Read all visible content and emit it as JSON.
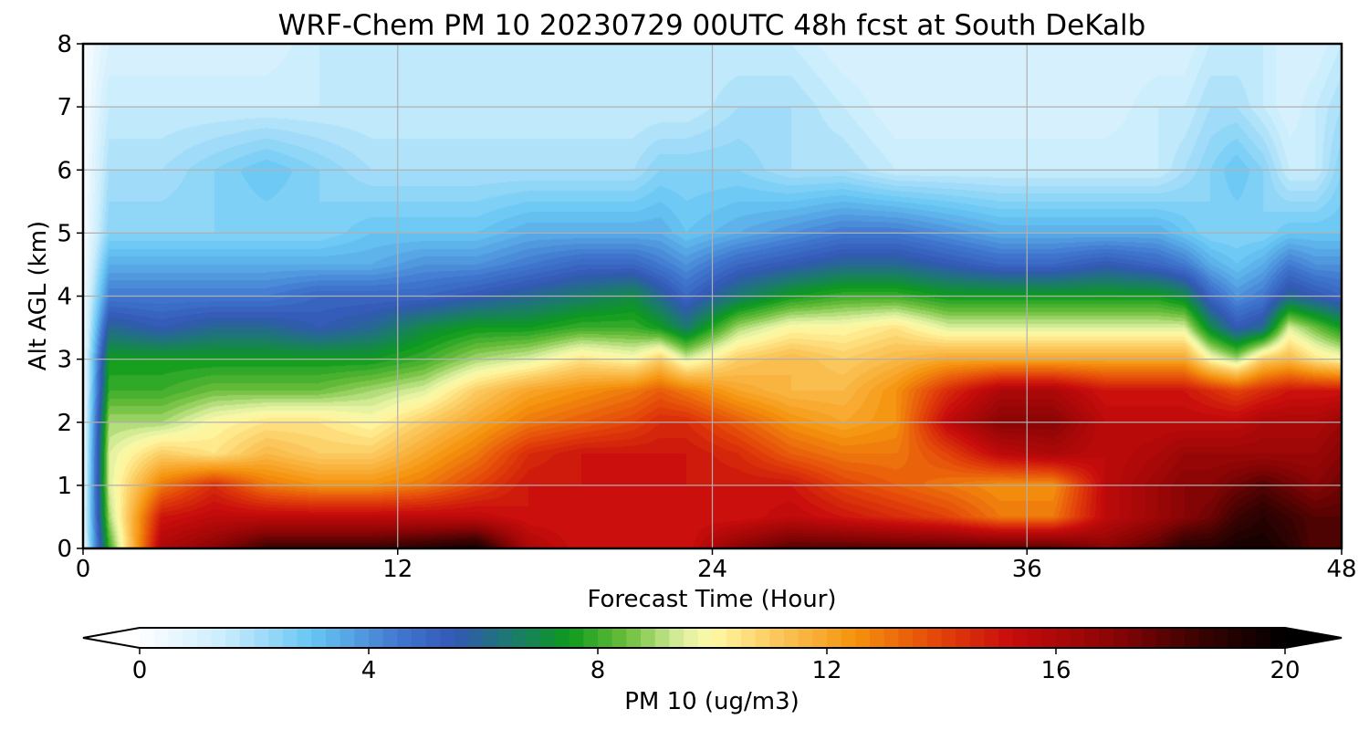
{
  "chart_data": {
    "type": "heatmap",
    "title": "WRF-Chem PM 10  20230729 00UTC 48h fcst at South DeKalb",
    "xlabel": "Forecast Time (Hour)",
    "ylabel": "Alt AGL (km)",
    "xlim": [
      0,
      48
    ],
    "ylim": [
      0,
      8
    ],
    "xticks": [
      0,
      12,
      24,
      36,
      48
    ],
    "yticks": [
      0,
      1,
      2,
      3,
      4,
      5,
      6,
      7,
      8
    ],
    "grid": true,
    "z_unit": "ug/m3",
    "x": [
      0,
      1,
      3,
      5,
      7,
      9,
      11,
      13,
      15,
      17,
      19,
      21,
      22,
      23,
      25,
      27,
      29,
      31,
      33,
      35,
      37,
      39,
      41,
      42,
      43,
      44,
      45,
      46,
      47,
      48
    ],
    "y": [
      0,
      0.5,
      1,
      1.5,
      2,
      2.5,
      3,
      3.5,
      4,
      4.5,
      5,
      6,
      7,
      8
    ],
    "z": [
      [
        0.5,
        8,
        16,
        17,
        18.5,
        18.5,
        18.5,
        19,
        19.5,
        16,
        15,
        15,
        15,
        15,
        17,
        18,
        18,
        18,
        18,
        18,
        18,
        17,
        18,
        19,
        19,
        19.5,
        19.5,
        19,
        18,
        18
      ],
      [
        0.5,
        9,
        15,
        15.5,
        15.5,
        15.5,
        15.5,
        15.5,
        15.5,
        15,
        15,
        15,
        15,
        15,
        15,
        15.5,
        15,
        14.5,
        14,
        13,
        13,
        15.5,
        16.5,
        17,
        17.5,
        18.5,
        19,
        18.5,
        18,
        18
      ],
      [
        0.3,
        9.5,
        13,
        14.5,
        13,
        12.5,
        12.5,
        13,
        14,
        15,
        15,
        15,
        15,
        15,
        15,
        15,
        14,
        13.5,
        13,
        12.5,
        12.5,
        15.5,
        16.5,
        17,
        17,
        17.5,
        18,
        17.5,
        17,
        17.5
      ],
      [
        0.2,
        9.5,
        11,
        10.5,
        11.5,
        11,
        11,
        12,
        13,
        14.5,
        15,
        15,
        15,
        15,
        14.5,
        13.5,
        13,
        13,
        14,
        15.5,
        16,
        15.5,
        16,
        16.5,
        16.5,
        16.5,
        16.5,
        16.5,
        16.5,
        17
      ],
      [
        0.2,
        9,
        9,
        10,
        10.5,
        10.5,
        10,
        11,
        12,
        13,
        13.5,
        14,
        14.5,
        14.5,
        13.5,
        12.5,
        12,
        12.5,
        15.5,
        17,
        17,
        15.5,
        15.5,
        15.5,
        15.5,
        15.5,
        16,
        16,
        16,
        16.5
      ],
      [
        0.2,
        8,
        8,
        8.5,
        8.5,
        8.5,
        9,
        9.5,
        11,
        12,
        12.5,
        13,
        13.5,
        13,
        12,
        11.5,
        11.5,
        12.5,
        14.5,
        16,
        16,
        15,
        15,
        15,
        14.5,
        14,
        14.5,
        15,
        15,
        15
      ],
      [
        0.2,
        7.5,
        7.5,
        7.5,
        7.5,
        7.5,
        7.5,
        8,
        9,
        9.5,
        10.5,
        10,
        11,
        9.5,
        11,
        11.5,
        11,
        11.5,
        12,
        12,
        12,
        12,
        12,
        12,
        10,
        9,
        11,
        11.5,
        10.5,
        10
      ],
      [
        0.2,
        6,
        5.5,
        6,
        6,
        5.5,
        6,
        7,
        7.5,
        7.5,
        8,
        8,
        7.5,
        6.5,
        9,
        10,
        10,
        10.5,
        9.5,
        9.5,
        9.5,
        9.5,
        9.5,
        9.5,
        7,
        5.5,
        6,
        9.5,
        8.5,
        7.5
      ],
      [
        0.2,
        4.5,
        4.5,
        4.5,
        4.5,
        5,
        5,
        5,
        5.5,
        6,
        6.5,
        7,
        6,
        5,
        6.5,
        7.5,
        8,
        8,
        7.5,
        7.5,
        7.5,
        7.5,
        7.5,
        7,
        5,
        4,
        4.5,
        6,
        5.5,
        5
      ],
      [
        0.1,
        3.5,
        3.5,
        3.5,
        3.5,
        3.5,
        3.5,
        4,
        4,
        4.5,
        5,
        5,
        4.5,
        4,
        5,
        5.5,
        6,
        6,
        5.5,
        5,
        5,
        5.5,
        5,
        4.5,
        3.5,
        3,
        3.5,
        4.5,
        4,
        4
      ],
      [
        0.1,
        2.5,
        2.5,
        2.5,
        2.5,
        2.5,
        3,
        3,
        3,
        3.5,
        3.5,
        3.5,
        3.5,
        3,
        3.5,
        4,
        4.5,
        4.5,
        4,
        3.5,
        3.5,
        3.5,
        3.5,
        3,
        2.5,
        2.5,
        2.5,
        3,
        3,
        3
      ],
      [
        0.1,
        2,
        2,
        2.5,
        3,
        2.5,
        2,
        2,
        2,
        2,
        2,
        2,
        2.5,
        2.5,
        2.5,
        2,
        2,
        1.5,
        1.5,
        1.5,
        1.5,
        1.5,
        1.5,
        2,
        2.5,
        3,
        2.5,
        1.5,
        1.5,
        2.5
      ],
      [
        0.1,
        1.5,
        1.5,
        1.5,
        1.5,
        1.5,
        1.5,
        1.5,
        1.5,
        1.5,
        1.5,
        1.5,
        1.5,
        1.5,
        2,
        2,
        1.5,
        1,
        1,
        1,
        1,
        1,
        1.5,
        1.5,
        2,
        2,
        1.5,
        1,
        1.5,
        2
      ],
      [
        0.1,
        1,
        1,
        1,
        1,
        1.5,
        1.5,
        1.5,
        1.5,
        1.5,
        1.5,
        1.5,
        1.5,
        1.5,
        1.5,
        1.5,
        1,
        1,
        1,
        1,
        1,
        1,
        1,
        1,
        1.5,
        1.5,
        1.5,
        1,
        1,
        1.5
      ]
    ],
    "colorbar": {
      "label": "PM 10  (ug/m3)",
      "min": 0,
      "max": 20,
      "ticks": [
        0,
        4,
        8,
        12,
        16,
        20
      ],
      "extend": "both",
      "stops": [
        {
          "v": 0,
          "c": "#ffffff"
        },
        {
          "v": 1.5,
          "c": "#c8ecfc"
        },
        {
          "v": 3,
          "c": "#67c6f4"
        },
        {
          "v": 4.5,
          "c": "#4178d0"
        },
        {
          "v": 5.5,
          "c": "#3258b4"
        },
        {
          "v": 6.5,
          "c": "#1b7a6e"
        },
        {
          "v": 7.5,
          "c": "#0c9a1c"
        },
        {
          "v": 8.5,
          "c": "#6cbf3c"
        },
        {
          "v": 9.5,
          "c": "#dff0a0"
        },
        {
          "v": 10,
          "c": "#fffaa6"
        },
        {
          "v": 11,
          "c": "#fbcc63"
        },
        {
          "v": 12.5,
          "c": "#f5920d"
        },
        {
          "v": 14,
          "c": "#e2420a"
        },
        {
          "v": 15.2,
          "c": "#c80c0c"
        },
        {
          "v": 17,
          "c": "#8a0404"
        },
        {
          "v": 18.5,
          "c": "#3a0202"
        },
        {
          "v": 20,
          "c": "#000000"
        }
      ],
      "under_color": "#ffffff",
      "over_color": "#000000"
    }
  }
}
